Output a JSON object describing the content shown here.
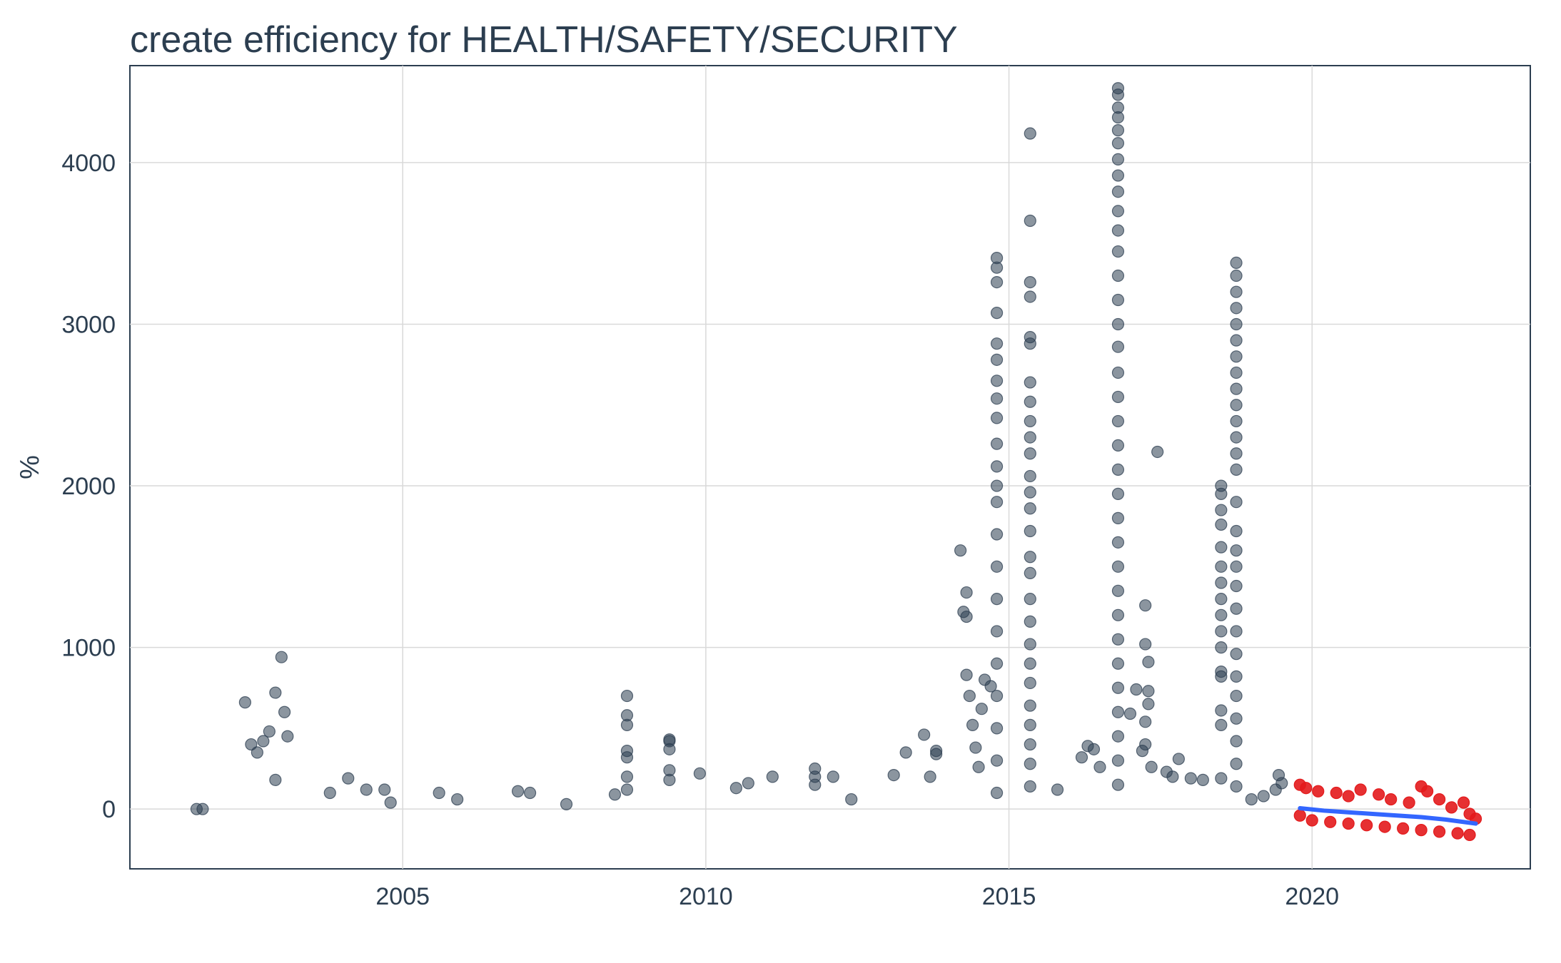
{
  "chart_data": {
    "type": "scatter",
    "title": "create efficiency for HEALTH/SAFETY/SECURITY",
    "xlabel": "",
    "ylabel": "%",
    "xlim": [
      2000.5,
      2023.6
    ],
    "ylim": [
      -370,
      4600
    ],
    "x_ticks": [
      "2005",
      "2010",
      "2015",
      "2020"
    ],
    "y_ticks": [
      "0",
      "1000",
      "2000",
      "3000",
      "4000"
    ],
    "grid": true,
    "colors": {
      "historical_points": "#2c3e50",
      "forecast_points": "#e31a1c",
      "trend_line": "#3366ff",
      "grid": "#d9d9d9",
      "axis_text": "#2c3e50"
    },
    "series": [
      {
        "key": "historical",
        "color": "#2c3e50",
        "points": [
          [
            2001.6,
            0
          ],
          [
            2001.7,
            0
          ],
          [
            2002.4,
            660
          ],
          [
            2002.5,
            400
          ],
          [
            2002.6,
            350
          ],
          [
            2002.7,
            420
          ],
          [
            2002.8,
            480
          ],
          [
            2002.9,
            720
          ],
          [
            2003.0,
            940
          ],
          [
            2003.05,
            600
          ],
          [
            2003.1,
            450
          ],
          [
            2002.9,
            180
          ],
          [
            2003.8,
            100
          ],
          [
            2004.1,
            190
          ],
          [
            2004.4,
            120
          ],
          [
            2004.7,
            120
          ],
          [
            2004.8,
            40
          ],
          [
            2005.6,
            100
          ],
          [
            2005.9,
            60
          ],
          [
            2006.9,
            110
          ],
          [
            2007.1,
            100
          ],
          [
            2007.7,
            30
          ],
          [
            2008.5,
            90
          ],
          [
            2008.7,
            700
          ],
          [
            2008.7,
            580
          ],
          [
            2008.7,
            520
          ],
          [
            2008.7,
            360
          ],
          [
            2008.7,
            320
          ],
          [
            2008.7,
            200
          ],
          [
            2008.7,
            120
          ],
          [
            2009.4,
            430
          ],
          [
            2009.4,
            420
          ],
          [
            2009.4,
            370
          ],
          [
            2009.4,
            240
          ],
          [
            2009.4,
            180
          ],
          [
            2009.9,
            220
          ],
          [
            2010.5,
            130
          ],
          [
            2010.7,
            160
          ],
          [
            2011.1,
            200
          ],
          [
            2011.8,
            250
          ],
          [
            2011.8,
            200
          ],
          [
            2011.8,
            150
          ],
          [
            2012.1,
            200
          ],
          [
            2012.4,
            60
          ],
          [
            2013.1,
            210
          ],
          [
            2013.3,
            350
          ],
          [
            2013.6,
            460
          ],
          [
            2013.8,
            360
          ],
          [
            2013.8,
            340
          ],
          [
            2013.7,
            200
          ],
          [
            2014.2,
            1600
          ],
          [
            2014.3,
            1340
          ],
          [
            2014.25,
            1220
          ],
          [
            2014.3,
            1190
          ],
          [
            2014.3,
            830
          ],
          [
            2014.35,
            700
          ],
          [
            2014.4,
            520
          ],
          [
            2014.45,
            380
          ],
          [
            2014.5,
            260
          ],
          [
            2014.6,
            800
          ],
          [
            2014.7,
            760
          ],
          [
            2014.55,
            620
          ],
          [
            2014.8,
            3410
          ],
          [
            2014.8,
            3350
          ],
          [
            2014.8,
            3260
          ],
          [
            2014.8,
            3070
          ],
          [
            2014.8,
            2880
          ],
          [
            2014.8,
            2780
          ],
          [
            2014.8,
            2650
          ],
          [
            2014.8,
            2540
          ],
          [
            2014.8,
            2420
          ],
          [
            2014.8,
            2260
          ],
          [
            2014.8,
            2120
          ],
          [
            2014.8,
            2000
          ],
          [
            2014.8,
            1900
          ],
          [
            2014.8,
            1700
          ],
          [
            2014.8,
            1500
          ],
          [
            2014.8,
            1300
          ],
          [
            2014.8,
            1100
          ],
          [
            2014.8,
            900
          ],
          [
            2014.8,
            700
          ],
          [
            2014.8,
            500
          ],
          [
            2014.8,
            300
          ],
          [
            2014.8,
            100
          ],
          [
            2015.35,
            4180
          ],
          [
            2015.35,
            3640
          ],
          [
            2015.35,
            3260
          ],
          [
            2015.35,
            3170
          ],
          [
            2015.35,
            2920
          ],
          [
            2015.35,
            2880
          ],
          [
            2015.35,
            2640
          ],
          [
            2015.35,
            2520
          ],
          [
            2015.35,
            2400
          ],
          [
            2015.35,
            2300
          ],
          [
            2015.35,
            2200
          ],
          [
            2015.35,
            2060
          ],
          [
            2015.35,
            1960
          ],
          [
            2015.35,
            1860
          ],
          [
            2015.35,
            1720
          ],
          [
            2015.35,
            1560
          ],
          [
            2015.35,
            1460
          ],
          [
            2015.35,
            1300
          ],
          [
            2015.35,
            1160
          ],
          [
            2015.35,
            1020
          ],
          [
            2015.35,
            900
          ],
          [
            2015.35,
            780
          ],
          [
            2015.35,
            640
          ],
          [
            2015.35,
            520
          ],
          [
            2015.35,
            400
          ],
          [
            2015.35,
            280
          ],
          [
            2015.35,
            140
          ],
          [
            2015.8,
            120
          ],
          [
            2016.2,
            320
          ],
          [
            2016.3,
            390
          ],
          [
            2016.4,
            370
          ],
          [
            2016.5,
            260
          ],
          [
            2016.8,
            4460
          ],
          [
            2016.8,
            4420
          ],
          [
            2016.8,
            4340
          ],
          [
            2016.8,
            4280
          ],
          [
            2016.8,
            4200
          ],
          [
            2016.8,
            4120
          ],
          [
            2016.8,
            4020
          ],
          [
            2016.8,
            3920
          ],
          [
            2016.8,
            3820
          ],
          [
            2016.8,
            3700
          ],
          [
            2016.8,
            3580
          ],
          [
            2016.8,
            3450
          ],
          [
            2016.8,
            3300
          ],
          [
            2016.8,
            3150
          ],
          [
            2016.8,
            3000
          ],
          [
            2016.8,
            2860
          ],
          [
            2016.8,
            2700
          ],
          [
            2016.8,
            2550
          ],
          [
            2016.8,
            2400
          ],
          [
            2016.8,
            2250
          ],
          [
            2016.8,
            2100
          ],
          [
            2016.8,
            1950
          ],
          [
            2016.8,
            1800
          ],
          [
            2016.8,
            1650
          ],
          [
            2016.8,
            1500
          ],
          [
            2016.8,
            1350
          ],
          [
            2016.8,
            1200
          ],
          [
            2016.8,
            1050
          ],
          [
            2016.8,
            900
          ],
          [
            2016.8,
            750
          ],
          [
            2016.8,
            600
          ],
          [
            2016.8,
            450
          ],
          [
            2016.8,
            300
          ],
          [
            2016.8,
            150
          ],
          [
            2017.0,
            590
          ],
          [
            2017.1,
            740
          ],
          [
            2017.2,
            360
          ],
          [
            2017.25,
            1260
          ],
          [
            2017.25,
            1020
          ],
          [
            2017.3,
            910
          ],
          [
            2017.3,
            730
          ],
          [
            2017.3,
            650
          ],
          [
            2017.25,
            540
          ],
          [
            2017.25,
            400
          ],
          [
            2017.35,
            260
          ],
          [
            2017.45,
            2210
          ],
          [
            2017.7,
            200
          ],
          [
            2017.8,
            310
          ],
          [
            2017.6,
            230
          ],
          [
            2018.0,
            190
          ],
          [
            2018.2,
            180
          ],
          [
            2018.5,
            2000
          ],
          [
            2018.5,
            1950
          ],
          [
            2018.5,
            1850
          ],
          [
            2018.5,
            1760
          ],
          [
            2018.5,
            1620
          ],
          [
            2018.5,
            1500
          ],
          [
            2018.5,
            1400
          ],
          [
            2018.5,
            1300
          ],
          [
            2018.5,
            1200
          ],
          [
            2018.5,
            1100
          ],
          [
            2018.5,
            1000
          ],
          [
            2018.5,
            850
          ],
          [
            2018.5,
            820
          ],
          [
            2018.5,
            610
          ],
          [
            2018.5,
            520
          ],
          [
            2018.5,
            190
          ],
          [
            2018.75,
            3380
          ],
          [
            2018.75,
            3300
          ],
          [
            2018.75,
            3200
          ],
          [
            2018.75,
            3100
          ],
          [
            2018.75,
            3000
          ],
          [
            2018.75,
            2900
          ],
          [
            2018.75,
            2800
          ],
          [
            2018.75,
            2700
          ],
          [
            2018.75,
            2600
          ],
          [
            2018.75,
            2500
          ],
          [
            2018.75,
            2400
          ],
          [
            2018.75,
            2300
          ],
          [
            2018.75,
            2200
          ],
          [
            2018.75,
            2100
          ],
          [
            2018.75,
            1900
          ],
          [
            2018.75,
            1720
          ],
          [
            2018.75,
            1600
          ],
          [
            2018.75,
            1500
          ],
          [
            2018.75,
            1380
          ],
          [
            2018.75,
            1240
          ],
          [
            2018.75,
            1100
          ],
          [
            2018.75,
            960
          ],
          [
            2018.75,
            820
          ],
          [
            2018.75,
            700
          ],
          [
            2018.75,
            560
          ],
          [
            2018.75,
            420
          ],
          [
            2018.75,
            280
          ],
          [
            2018.75,
            140
          ],
          [
            2019.0,
            60
          ],
          [
            2019.2,
            80
          ],
          [
            2019.4,
            120
          ],
          [
            2019.45,
            210
          ],
          [
            2019.5,
            160
          ]
        ]
      },
      {
        "key": "forecast",
        "color": "#e31a1c",
        "points": [
          [
            2019.8,
            150
          ],
          [
            2019.9,
            130
          ],
          [
            2020.1,
            110
          ],
          [
            2020.4,
            100
          ],
          [
            2020.6,
            80
          ],
          [
            2020.8,
            120
          ],
          [
            2021.1,
            90
          ],
          [
            2021.3,
            60
          ],
          [
            2021.6,
            40
          ],
          [
            2021.8,
            140
          ],
          [
            2021.9,
            110
          ],
          [
            2022.1,
            60
          ],
          [
            2022.3,
            10
          ],
          [
            2022.5,
            40
          ],
          [
            2022.6,
            -30
          ],
          [
            2022.7,
            -60
          ],
          [
            2019.8,
            -40
          ],
          [
            2020.0,
            -70
          ],
          [
            2020.3,
            -80
          ],
          [
            2020.6,
            -90
          ],
          [
            2020.9,
            -100
          ],
          [
            2021.2,
            -110
          ],
          [
            2021.5,
            -120
          ],
          [
            2021.8,
            -130
          ],
          [
            2022.1,
            -140
          ],
          [
            2022.4,
            -150
          ],
          [
            2022.6,
            -160
          ]
        ]
      },
      {
        "key": "trend",
        "color": "#3366ff",
        "points": [
          [
            2019.8,
            5
          ],
          [
            2020.2,
            -10
          ],
          [
            2020.6,
            -20
          ],
          [
            2021.0,
            -30
          ],
          [
            2021.4,
            -40
          ],
          [
            2021.8,
            -50
          ],
          [
            2022.2,
            -65
          ],
          [
            2022.7,
            -90
          ]
        ]
      }
    ]
  }
}
